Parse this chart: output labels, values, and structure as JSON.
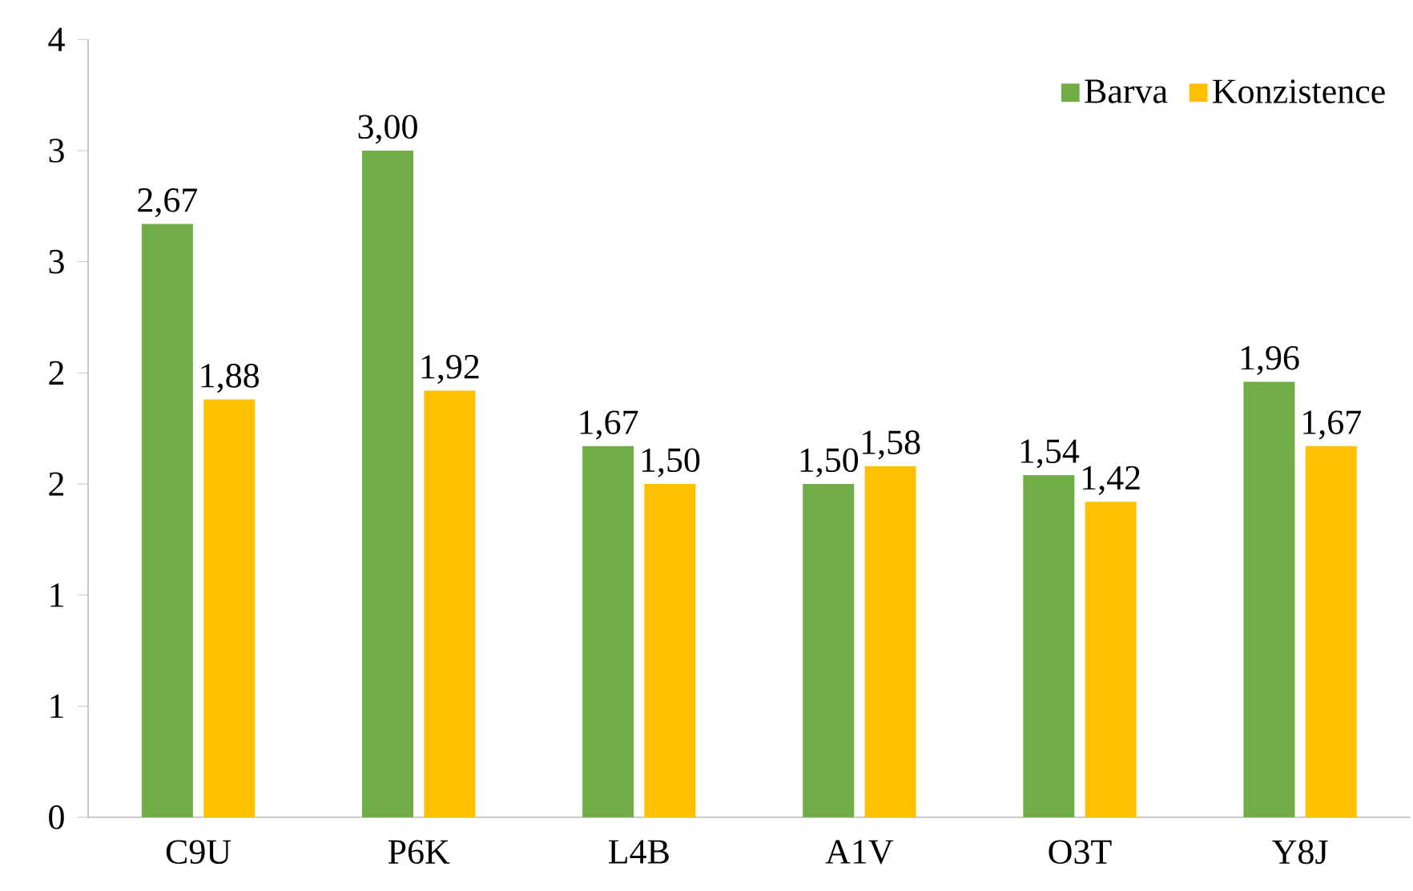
{
  "chart_data": {
    "type": "bar",
    "categories": [
      "C9U",
      "P6K",
      "L4B",
      "A1V",
      "O3T",
      "Y8J"
    ],
    "series": [
      {
        "name": "Barva",
        "color": "#70ad47",
        "values": [
          2.67,
          3.0,
          1.67,
          1.5,
          1.54,
          1.96
        ],
        "value_labels": [
          "2,67",
          "3,00",
          "1,67",
          "1,50",
          "1,54",
          "1,96"
        ]
      },
      {
        "name": "Konzistence",
        "color": "#ffc000",
        "values": [
          1.88,
          1.92,
          1.5,
          1.58,
          1.42,
          1.67
        ],
        "value_labels": [
          "1,88",
          "1,92",
          "1,50",
          "1,58",
          "1,42",
          "1,67"
        ]
      }
    ],
    "ylim": [
      0,
      3.5
    ],
    "yticks": [
      0,
      {
        "value": 0.5,
        "label": "1"
      },
      1,
      {
        "value": 1.5,
        "label": "2"
      },
      2,
      {
        "value": 2.5,
        "label": "3"
      },
      3,
      {
        "value": 3.5,
        "label": "4"
      }
    ],
    "legend": "top right",
    "grid": false
  }
}
